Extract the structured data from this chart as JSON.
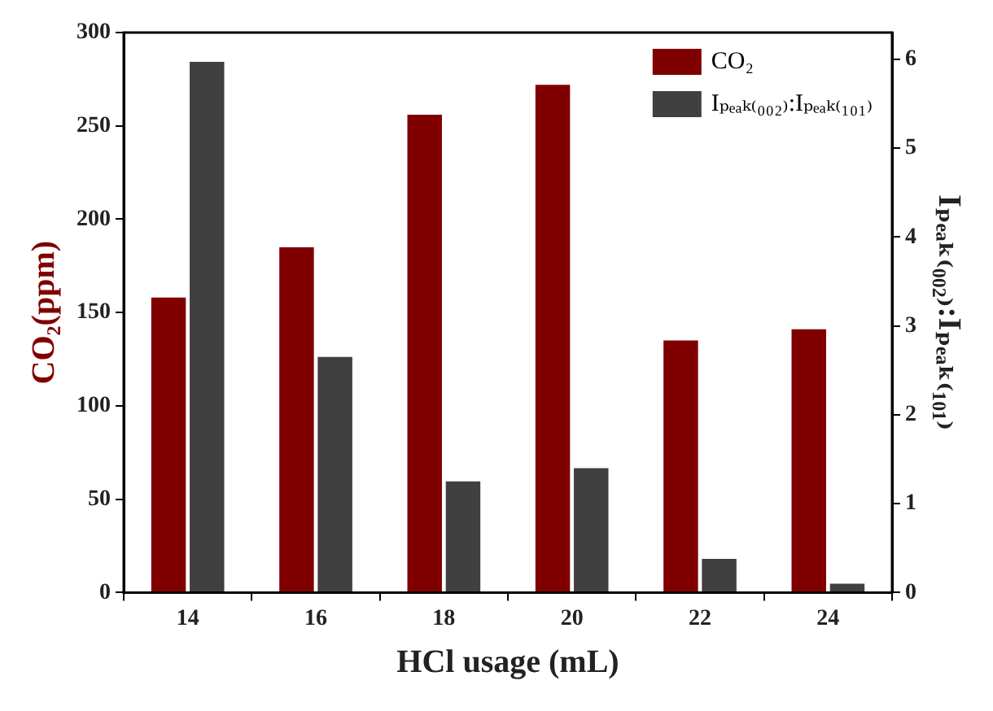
{
  "chart_data": {
    "type": "bar",
    "xlabel": "HCl usage (mL)",
    "ylabel": "CO₂(ppm)",
    "y2label": "Iₚₑₐₖ₍₀₀₂₎:Iₚₑₐₖ₍₁₀₁₎",
    "categories": [
      "14",
      "16",
      "18",
      "20",
      "22",
      "24"
    ],
    "series": [
      {
        "name": "CO₂",
        "color": "#800000",
        "values": [
          158,
          185,
          256,
          272,
          135,
          141
        ]
      },
      {
        "name": "Iₚₑₐₖ₍₀₀₂₎:Iₚₑₐₖ₍₁₀₁₎",
        "color": "#404040",
        "axis": "y2",
        "values": [
          5.97,
          2.65,
          1.25,
          1.4,
          0.38,
          0.1
        ]
      }
    ],
    "ylim": [
      0,
      300
    ],
    "yticks": [
      0,
      50,
      100,
      150,
      200,
      250,
      300
    ],
    "y2lim": [
      0,
      6.3
    ],
    "y2ticks": [
      0,
      1,
      2,
      3,
      4,
      5,
      6
    ],
    "grid": false,
    "legend": "top right"
  }
}
